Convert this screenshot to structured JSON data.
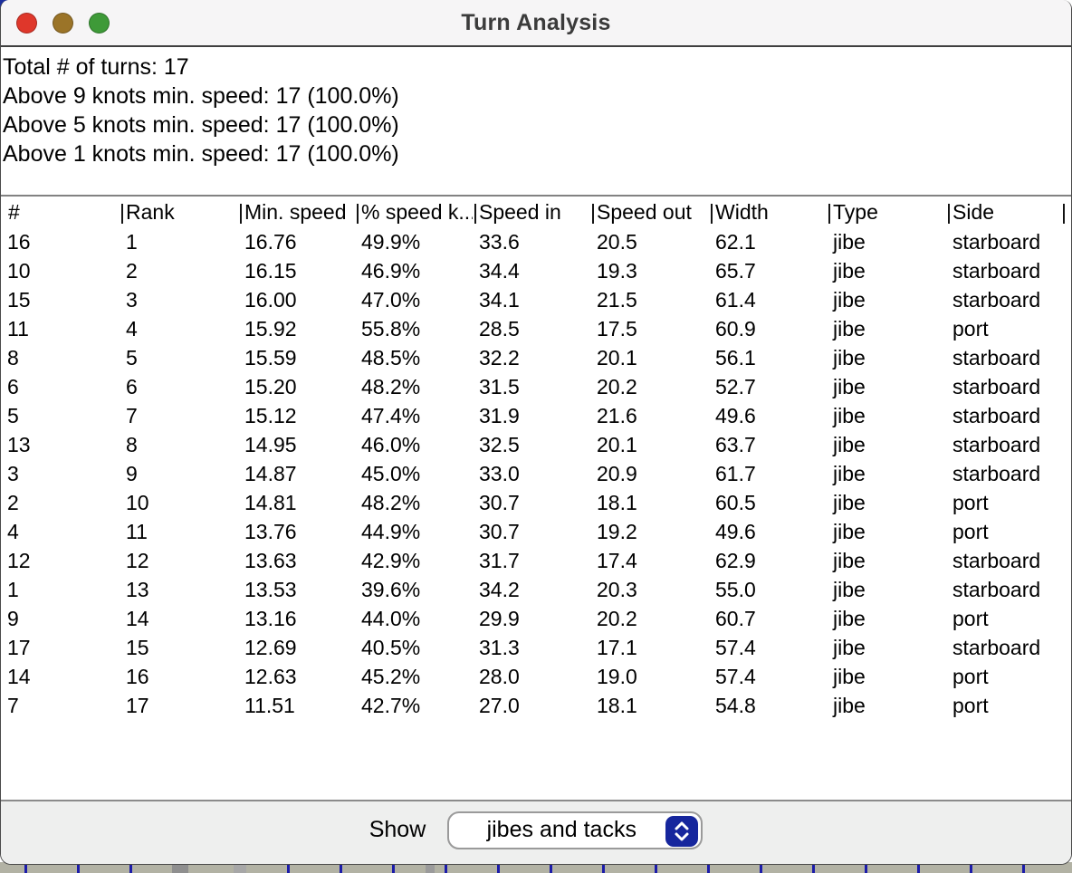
{
  "window": {
    "title": "Turn Analysis"
  },
  "summary": {
    "lines": [
      "Total # of turns: 17",
      "Above 9 knots min. speed: 17 (100.0%)",
      "Above 5 knots min. speed: 17 (100.0%)",
      "Above 1 knots min. speed: 17 (100.0%)"
    ]
  },
  "table": {
    "separator": "|",
    "headers": [
      "#",
      "Rank",
      "Min. speed",
      "% speed k...",
      "Speed in",
      "Speed out",
      "Width",
      "Type",
      "Side"
    ],
    "rows": [
      [
        "16",
        "1",
        "16.76",
        "49.9%",
        "33.6",
        "20.5",
        "62.1",
        "jibe",
        "starboard"
      ],
      [
        "10",
        "2",
        "16.15",
        "46.9%",
        "34.4",
        "19.3",
        "65.7",
        "jibe",
        "starboard"
      ],
      [
        "15",
        "3",
        "16.00",
        "47.0%",
        "34.1",
        "21.5",
        "61.4",
        "jibe",
        "starboard"
      ],
      [
        "11",
        "4",
        "15.92",
        "55.8%",
        "28.5",
        "17.5",
        "60.9",
        "jibe",
        "port"
      ],
      [
        "8",
        "5",
        "15.59",
        "48.5%",
        "32.2",
        "20.1",
        "56.1",
        "jibe",
        "starboard"
      ],
      [
        "6",
        "6",
        "15.20",
        "48.2%",
        "31.5",
        "20.2",
        "52.7",
        "jibe",
        "starboard"
      ],
      [
        "5",
        "7",
        "15.12",
        "47.4%",
        "31.9",
        "21.6",
        "49.6",
        "jibe",
        "starboard"
      ],
      [
        "13",
        "8",
        "14.95",
        "46.0%",
        "32.5",
        "20.1",
        "63.7",
        "jibe",
        "starboard"
      ],
      [
        "3",
        "9",
        "14.87",
        "45.0%",
        "33.0",
        "20.9",
        "61.7",
        "jibe",
        "starboard"
      ],
      [
        "2",
        "10",
        "14.81",
        "48.2%",
        "30.7",
        "18.1",
        "60.5",
        "jibe",
        "port"
      ],
      [
        "4",
        "11",
        "13.76",
        "44.9%",
        "30.7",
        "19.2",
        "49.6",
        "jibe",
        "port"
      ],
      [
        "12",
        "12",
        "13.63",
        "42.9%",
        "31.7",
        "17.4",
        "62.9",
        "jibe",
        "starboard"
      ],
      [
        "1",
        "13",
        "13.53",
        "39.6%",
        "34.2",
        "20.3",
        "55.0",
        "jibe",
        "starboard"
      ],
      [
        "9",
        "14",
        "13.16",
        "44.0%",
        "29.9",
        "20.2",
        "60.7",
        "jibe",
        "port"
      ],
      [
        "17",
        "15",
        "12.69",
        "40.5%",
        "31.3",
        "17.1",
        "57.4",
        "jibe",
        "starboard"
      ],
      [
        "14",
        "16",
        "12.63",
        "45.2%",
        "28.0",
        "19.0",
        "57.4",
        "jibe",
        "port"
      ],
      [
        "7",
        "17",
        "11.51",
        "42.7%",
        "27.0",
        "18.1",
        "54.8",
        "jibe",
        "port"
      ]
    ]
  },
  "footer": {
    "show_label": "Show",
    "dropdown_value": "jibes and tacks"
  },
  "colors": {
    "close_button": "#df372b",
    "minimize_button": "#9b7428",
    "zoom_button": "#3e9a38",
    "accent_blue": "#16269d",
    "titlebar_bg": "#f6f5f6",
    "footer_bg": "#eeefee",
    "desktop_strip": "#b2b2a4",
    "strip_line": "#1c1caa"
  }
}
